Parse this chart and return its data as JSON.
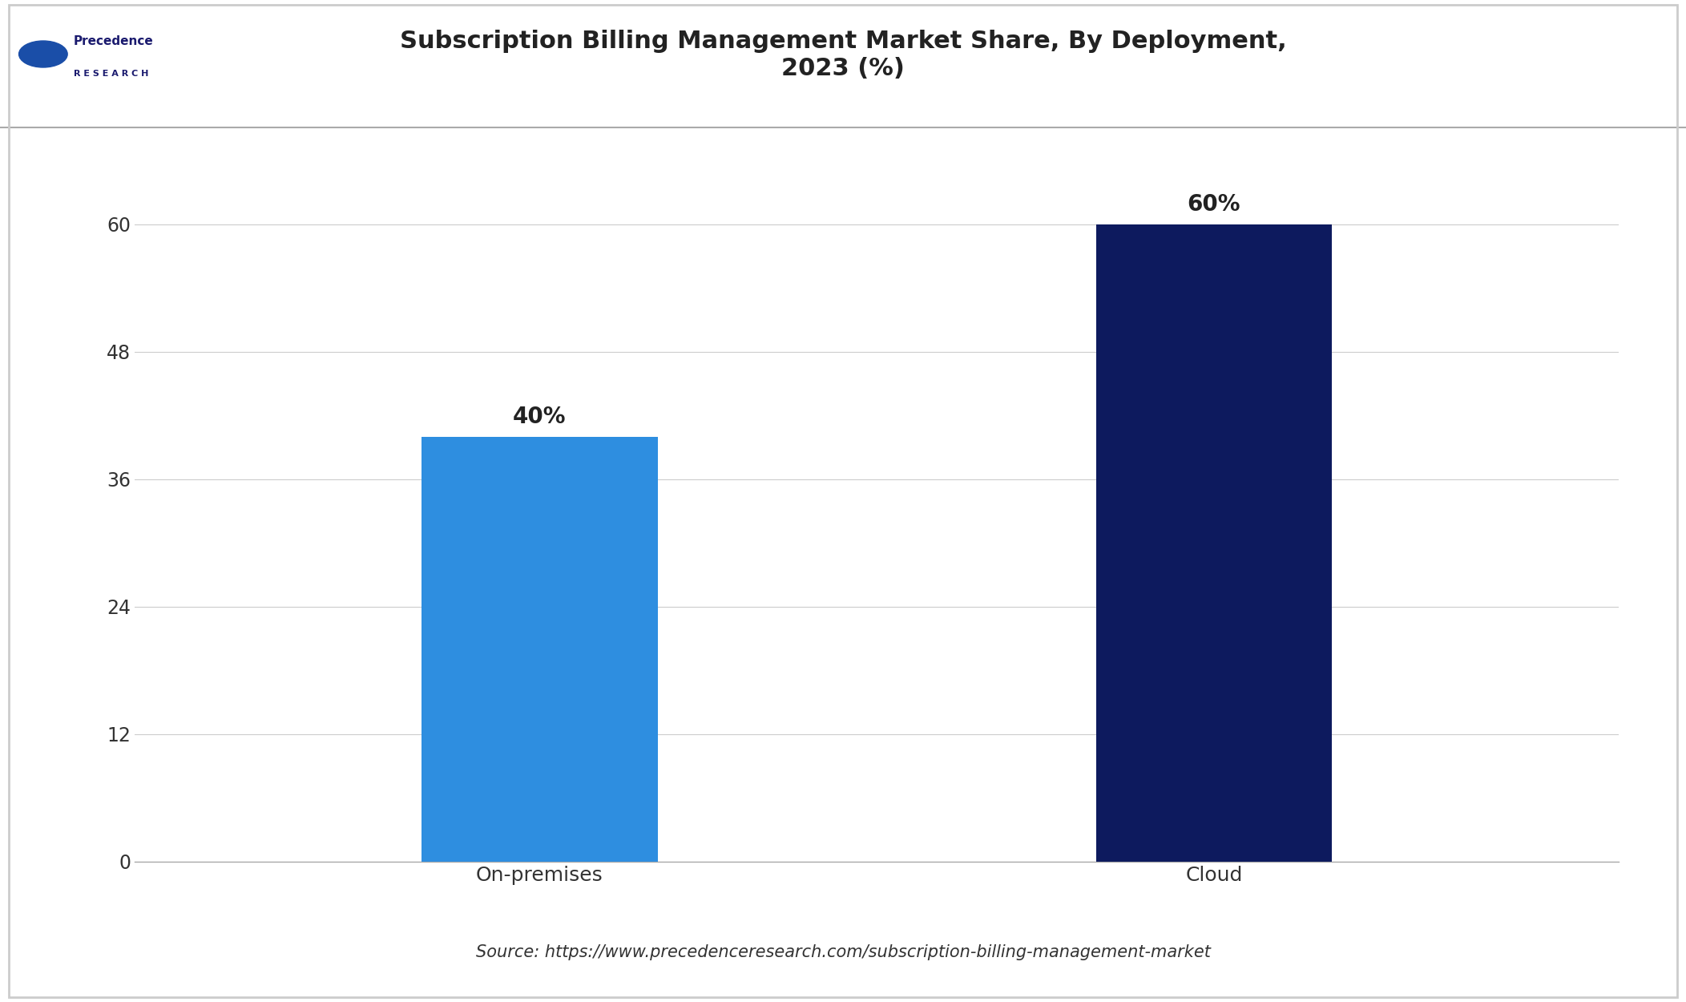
{
  "title": "Subscription Billing Management Market Share, By Deployment,\n2023 (%)",
  "categories": [
    "On-premises",
    "Cloud"
  ],
  "values": [
    40,
    60
  ],
  "bar_colors": [
    "#2E8EE0",
    "#0D1A5E"
  ],
  "bar_labels": [
    "40%",
    "60%"
  ],
  "ylim": [
    0,
    66
  ],
  "yticks": [
    0,
    12,
    24,
    36,
    48,
    60
  ],
  "source_text": "Source: https://www.precedenceresearch.com/subscription-billing-management-market",
  "background_color": "#FFFFFF",
  "title_fontsize": 22,
  "bar_label_fontsize": 20,
  "tick_fontsize": 17,
  "source_fontsize": 15,
  "grid_color": "#CCCCCC",
  "bar_width": 0.35
}
